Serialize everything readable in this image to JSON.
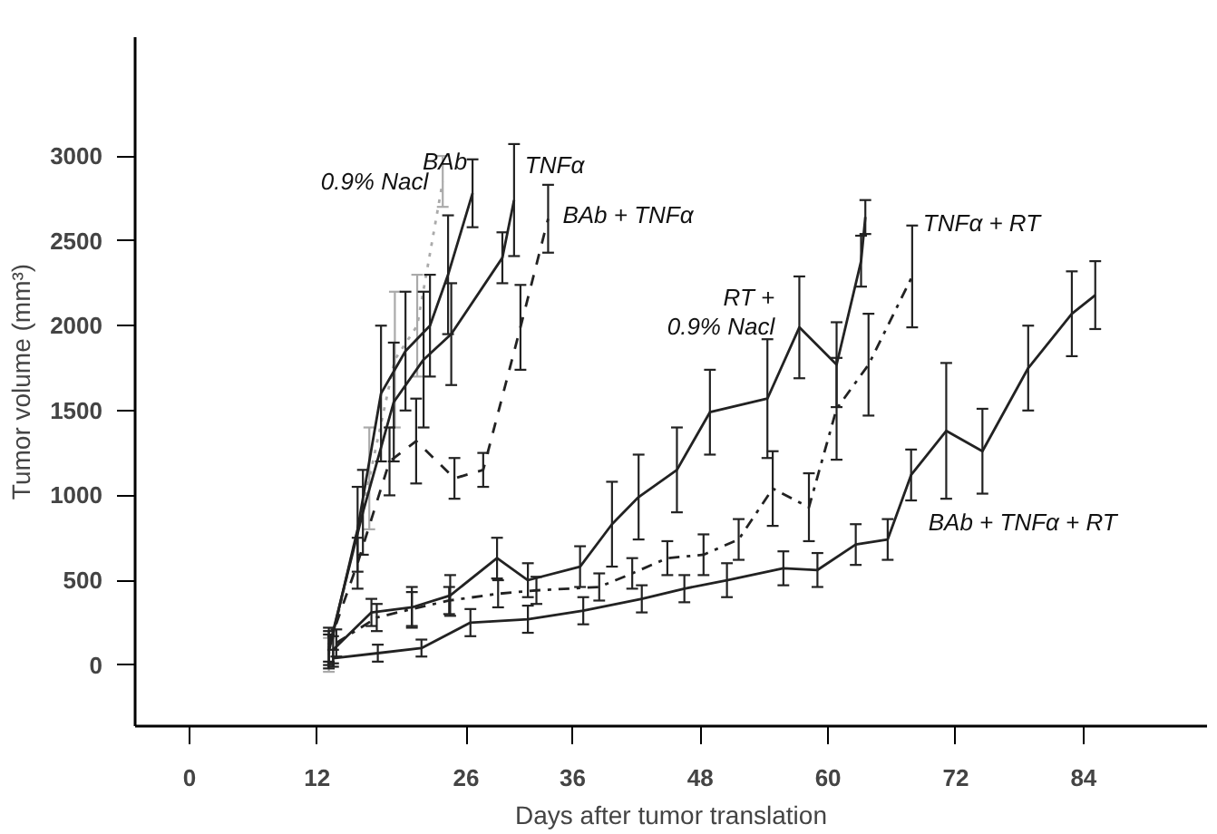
{
  "chart_data": {
    "type": "line",
    "xlabel": "Days after tumor translation",
    "ylabel": "Tumor volume (mm³)",
    "xlim": [
      -5.1,
      95.6
    ],
    "ylim": [
      -360,
      3700
    ],
    "xticks": [
      0,
      12,
      26,
      36,
      48,
      60,
      72,
      84
    ],
    "yticks": [
      0,
      500,
      1000,
      1500,
      2000,
      2500,
      3000
    ],
    "grid": false,
    "legend": false,
    "marker": "none",
    "series": [
      {
        "name": "0.9% Nacl",
        "color": "#aaaaaa",
        "line_style": "dotted",
        "x": [
          13.1,
          16.9,
          19.3,
          21.4,
          23.8
        ],
        "values": [
          60,
          1100,
          1800,
          2000,
          2850
        ],
        "errors": [
          100,
          300,
          400,
          300,
          150
        ]
      },
      {
        "name": "BAb",
        "color": "#222222",
        "line_style": "solid",
        "x": [
          13.1,
          15.8,
          18.0,
          20.3,
          22.6,
          24.3,
          26.6
        ],
        "values": [
          80,
          800,
          1600,
          1850,
          2000,
          2300,
          2780
        ],
        "errors": [
          100,
          250,
          400,
          350,
          300,
          350,
          200
        ]
      },
      {
        "name": "TNFα",
        "color": "#222222",
        "line_style": "solid",
        "x": [
          13.1,
          16.3,
          19.2,
          22.0,
          24.6,
          29.4,
          30.5
        ],
        "values": [
          100,
          900,
          1550,
          1800,
          1950,
          2400,
          2740
        ],
        "errors": [
          100,
          250,
          350,
          400,
          300,
          150,
          330
        ]
      },
      {
        "name": "BAb + TNFα",
        "color": "#222222",
        "line_style": "dashed",
        "x": [
          13.1,
          15.8,
          18.8,
          21.3,
          24.9,
          27.6,
          31.1,
          33.7
        ],
        "values": [
          120,
          600,
          1200,
          1320,
          1100,
          1150,
          1990,
          2630
        ],
        "errors": [
          100,
          150,
          200,
          250,
          120,
          100,
          250,
          200
        ]
      },
      {
        "name": "RT +\n0.9% Nacl",
        "color": "#222222",
        "line_style": "solid",
        "x": [
          13.5,
          17.1,
          20.9,
          24.5,
          28.9,
          31.8,
          36.7,
          39.7,
          42.2,
          45.8,
          48.9,
          54.3,
          57.3,
          60.8,
          63.1,
          63.5
        ],
        "values": [
          90,
          310,
          340,
          410,
          630,
          500,
          580,
          830,
          990,
          1150,
          1490,
          1570,
          1990,
          1770,
          2380,
          2640
        ],
        "errors": [
          80,
          80,
          120,
          120,
          120,
          100,
          120,
          250,
          250,
          250,
          250,
          350,
          300,
          250,
          150,
          100
        ]
      },
      {
        "name": "TNFα + RT",
        "color": "#222222",
        "line_style": "dashdot",
        "x": [
          13.8,
          17.6,
          20.9,
          24.4,
          29.0,
          32.6,
          38.5,
          41.6,
          44.9,
          48.3,
          51.6,
          54.8,
          58.2,
          60.8,
          63.8,
          67.9
        ],
        "values": [
          130,
          280,
          330,
          380,
          420,
          440,
          460,
          540,
          630,
          650,
          740,
          1040,
          930,
          1510,
          1770,
          2290
        ],
        "errors": [
          80,
          80,
          100,
          80,
          80,
          80,
          80,
          90,
          100,
          120,
          120,
          220,
          200,
          300,
          300,
          300
        ]
      },
      {
        "name": "BAb + TNFα + RT",
        "color": "#222222",
        "line_style": "solid",
        "x": [
          13.5,
          17.7,
          21.8,
          26.4,
          31.8,
          37.0,
          42.5,
          46.5,
          50.5,
          55.8,
          59.0,
          62.6,
          65.6,
          67.8,
          71.1,
          74.5,
          78.8,
          82.9,
          85.1
        ],
        "values": [
          40,
          70,
          100,
          250,
          270,
          320,
          390,
          450,
          500,
          570,
          560,
          710,
          740,
          1120,
          1380,
          1260,
          1750,
          2070,
          2180
        ],
        "errors": [
          50,
          50,
          50,
          80,
          80,
          80,
          80,
          80,
          100,
          100,
          100,
          120,
          120,
          150,
          400,
          250,
          250,
          250,
          200
        ]
      }
    ]
  }
}
